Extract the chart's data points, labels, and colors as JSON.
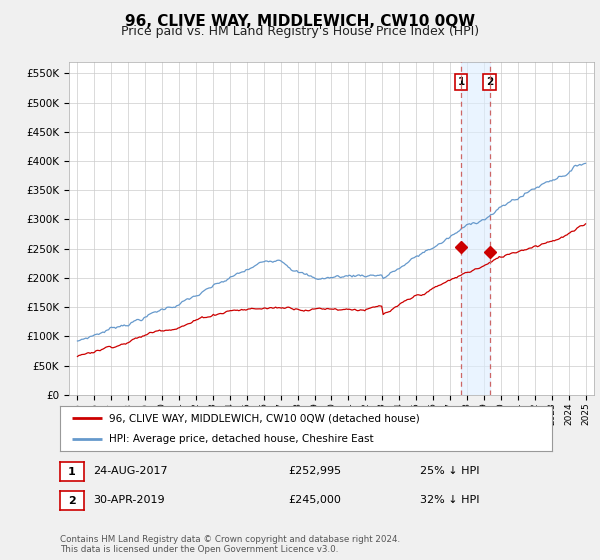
{
  "title": "96, CLIVE WAY, MIDDLEWICH, CW10 0QW",
  "subtitle": "Price paid vs. HM Land Registry's House Price Index (HPI)",
  "title_fontsize": 11,
  "subtitle_fontsize": 9,
  "ylabel_ticks": [
    "£0",
    "£50K",
    "£100K",
    "£150K",
    "£200K",
    "£250K",
    "£300K",
    "£350K",
    "£400K",
    "£450K",
    "£500K",
    "£550K"
  ],
  "ylim": [
    0,
    570000
  ],
  "xlim_start": 1994.5,
  "xlim_end": 2025.5,
  "red_color": "#cc0000",
  "blue_color": "#6699cc",
  "shade_color": "#ddeeff",
  "vline_color": "#cc6666",
  "legend_label_red": "96, CLIVE WAY, MIDDLEWICH, CW10 0QW (detached house)",
  "legend_label_blue": "HPI: Average price, detached house, Cheshire East",
  "transaction1_date": "24-AUG-2017",
  "transaction1_price": "£252,995",
  "transaction1_hpi": "25% ↓ HPI",
  "transaction1_year": 2017.65,
  "transaction1_price_val": 252995,
  "transaction2_date": "30-APR-2019",
  "transaction2_price": "£245,000",
  "transaction2_hpi": "32% ↓ HPI",
  "transaction2_year": 2019.33,
  "transaction2_price_val": 245000,
  "footer": "Contains HM Land Registry data © Crown copyright and database right 2024.\nThis data is licensed under the Open Government Licence v3.0.",
  "background_color": "#f0f0f0",
  "plot_bg_color": "#ffffff",
  "grid_color": "#cccccc"
}
